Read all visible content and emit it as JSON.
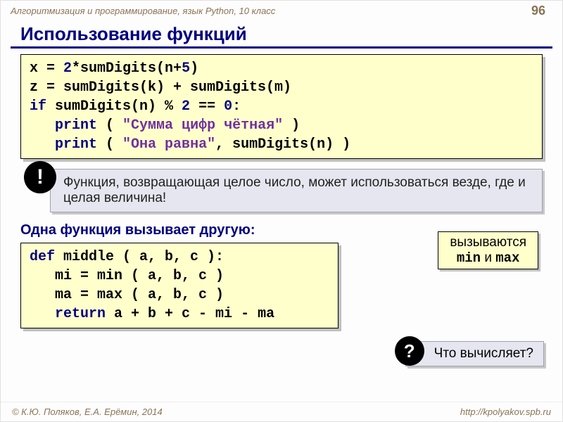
{
  "header": {
    "course": "Алгоритмизация и программирование, язык Python, 10 класс",
    "page": "96"
  },
  "title": "Использование функций",
  "code1": {
    "l1_a": "x = ",
    "l1_b": "2",
    "l1_c": "*sumDigits(n+",
    "l1_d": "5",
    "l1_e": ")",
    "l2": "z = sumDigits(k) + sumDigits(m)",
    "l3_a": "if",
    "l3_b": " sumDigits(n) % ",
    "l3_c": "2",
    "l3_d": " == ",
    "l3_e": "0",
    "l3_f": ":",
    "l4_a": "print",
    "l4_b": " ( ",
    "l4_c": "\"Сумма цифр чётная\"",
    "l4_d": " )",
    "l5_a": "print",
    "l5_b": " ( ",
    "l5_c": "\"Она равна\"",
    "l5_d": ", sumDigits(n) )"
  },
  "note": {
    "bang": "!",
    "text": "Функция, возвращающая целое число, может использоваться везде, где и целая величина!"
  },
  "subhead": "Одна функция вызывает другую:",
  "code2": {
    "l1_a": "def",
    "l1_b": " middle ( a, b, c ):",
    "l2": "mi = min ( a, b, c )",
    "l3": "ma = max ( a, b, c )",
    "l4_a": "return",
    "l4_b": " a + b + c - mi - ma"
  },
  "callout": {
    "line1": "вызываются",
    "min": "min",
    "and": " и ",
    "max": "max"
  },
  "question": {
    "mark": "?",
    "text": "Что вычисляет?"
  },
  "footer": {
    "left": "© К.Ю. Поляков, Е.А. Ерёмин, 2014",
    "right": "http://kpolyakov.spb.ru"
  },
  "colors": {
    "keyword": "#000080",
    "string": "#7030a0",
    "code_bg": "#ffffcc",
    "note_bg": "#e6e6f0"
  }
}
